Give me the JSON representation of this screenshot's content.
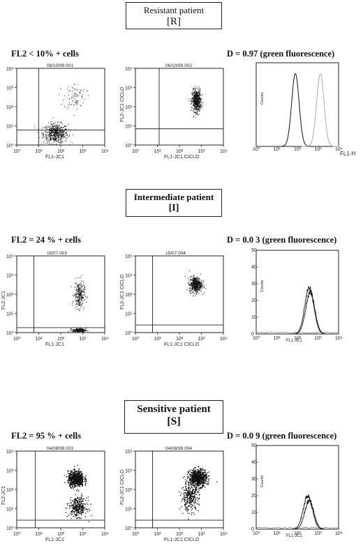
{
  "sections": [
    {
      "box_title": "Resistant patient",
      "box_code": "[R]",
      "left_caption": "FL2 < 10% + cells",
      "right_caption": "D = 0.97 (green fluorescence)",
      "caption_close_paren": ")",
      "plot1": {
        "header": "06/10/99.001",
        "xlabel": "FL1-JC1",
        "ylabel": ""
      },
      "plot2": {
        "header": "06/10/99.002",
        "xlabel": "FL1-JC1 CICLO",
        "ylabel": "FL2-JC1 CICLO"
      },
      "hist": {
        "xlabel": "FL1-H",
        "ylabel": "Counts",
        "mode": "two-peaks"
      }
    },
    {
      "box_title": "Intermediate patient",
      "box_code": "[I]",
      "left_caption": "FL2 = 24 % + cells",
      "right_caption": "D = 0.0 3 (green fluorescence)",
      "plot1": {
        "header": "15/07.003",
        "xlabel": "FL1-JC1",
        "ylabel": "FL2-JC1"
      },
      "plot2": {
        "header": "15/07.004",
        "xlabel": "FL1-JC1 CICLO",
        "ylabel": "FL2-JC1 CICLO"
      },
      "hist": {
        "xlabel": "FL1-JC1",
        "ylabel": "Counts",
        "mode": "overlap"
      }
    },
    {
      "box_title": "Sensitive patient",
      "box_code": "[S]",
      "left_caption": "FL2 = 95 % + cells",
      "right_caption": "D = 0.0 9 (green fluorescence)",
      "plot1": {
        "header": "04/08/99.003",
        "xlabel": "FL1-JC1",
        "ylabel": "FL2-JC1"
      },
      "plot2": {
        "header": "04/08/99.004",
        "xlabel": "FL1-JC1 CICLO",
        "ylabel": "FL2-JC1 CICLO"
      },
      "hist": {
        "xlabel": "FL1-JC1",
        "ylabel": "Counts",
        "mode": "overlap"
      }
    }
  ],
  "decade_ticks": [
    "10⁰",
    "10¹",
    "10²",
    "10³",
    "10⁴"
  ],
  "hist_y_ticks": [
    "0",
    "10",
    "20",
    "30",
    "40",
    "50"
  ],
  "chart_data": [
    {
      "type": "scatter",
      "panel": "Resistant patient - FL1-JC1 vs FL2",
      "title": "06/10/99.001",
      "xlabel": "FL1-JC1",
      "ylabel": "",
      "x_scale": "log",
      "y_scale": "log",
      "xlim": [
        1,
        10000
      ],
      "ylim": [
        1,
        10000
      ],
      "clusters": [
        {
          "cx": 60,
          "cy": 4,
          "note": "main population below FL2 gate"
        },
        {
          "cx": 450,
          "cy": 350,
          "note": "small FL2-positive population"
        }
      ]
    },
    {
      "type": "scatter",
      "panel": "Resistant patient - CICLO",
      "title": "06/10/99.002",
      "xlabel": "FL1-JC1 CICLO",
      "ylabel": "FL2-JC1 CICLO",
      "x_scale": "log",
      "y_scale": "log",
      "xlim": [
        1,
        10000
      ],
      "ylim": [
        1,
        10000
      ],
      "clusters": [
        {
          "cx": 600,
          "cy": 200
        }
      ]
    },
    {
      "type": "line",
      "panel": "Resistant patient - histogram",
      "xlabel": "FL1-H",
      "ylabel": "Counts",
      "x_scale": "log",
      "series": [
        {
          "peak_x": 80,
          "peak_y": 1.0,
          "color": "#111111"
        },
        {
          "peak_x": 1300,
          "peak_y": 1.0,
          "color": "#aaaaaa"
        }
      ],
      "D": 0.97
    },
    {
      "type": "scatter",
      "panel": "Intermediate patient - FL1-JC1 vs FL2-JC1",
      "title": "15/07.003",
      "xlabel": "FL1-JC1",
      "ylabel": "FL2-JC1",
      "x_scale": "log",
      "y_scale": "log",
      "xlim": [
        1,
        10000
      ],
      "ylim": [
        1,
        10000
      ],
      "clusters": [
        {
          "cx": 700,
          "cy": 90
        },
        {
          "cx": 700,
          "cy": 1.3
        }
      ]
    },
    {
      "type": "scatter",
      "panel": "Intermediate patient - CICLO",
      "title": "15/07.004",
      "xlabel": "FL1-JC1 CICLO",
      "ylabel": "FL2-JC1 CICLO",
      "x_scale": "log",
      "y_scale": "log",
      "xlim": [
        1,
        10000
      ],
      "ylim": [
        1,
        10000
      ],
      "clusters": [
        {
          "cx": 550,
          "cy": 320
        }
      ]
    },
    {
      "type": "line",
      "panel": "Intermediate patient - histogram",
      "xlabel": "FL1-JC1",
      "ylabel": "Counts",
      "x_scale": "log",
      "ylim": [
        0,
        50
      ],
      "series": [
        {
          "peak_x": 380,
          "peak_y": 28
        },
        {
          "peak_x": 420,
          "peak_y": 25
        }
      ],
      "D": 0.03
    },
    {
      "type": "scatter",
      "panel": "Sensitive patient - FL1-JC1 vs FL2-JC1",
      "title": "04/08/99.003",
      "xlabel": "FL1-JC1",
      "ylabel": "FL2-JC1",
      "x_scale": "log",
      "y_scale": "log",
      "xlim": [
        1,
        10000
      ],
      "ylim": [
        1,
        10000
      ],
      "clusters": [
        {
          "cx": 500,
          "cy": 350
        },
        {
          "cx": 600,
          "cy": 12
        }
      ]
    },
    {
      "type": "scatter",
      "panel": "Sensitive patient - CICLO",
      "title": "04/08/99.004",
      "xlabel": "FL1-JC1 CICLO",
      "ylabel": "FL2-JC1 CICLO",
      "x_scale": "log",
      "y_scale": "log",
      "xlim": [
        1,
        10000
      ],
      "ylim": [
        1,
        10000
      ],
      "clusters": [
        {
          "cx": 700,
          "cy": 400
        },
        {
          "cx": 300,
          "cy": 40
        }
      ]
    },
    {
      "type": "line",
      "panel": "Sensitive patient - histogram",
      "xlabel": "FL1-JC1",
      "ylabel": "Counts",
      "x_scale": "log",
      "ylim": [
        0,
        50
      ],
      "series": [
        {
          "peak_x": 320,
          "peak_y": 20
        },
        {
          "peak_x": 380,
          "peak_y": 17
        }
      ],
      "D": 0.09
    }
  ]
}
